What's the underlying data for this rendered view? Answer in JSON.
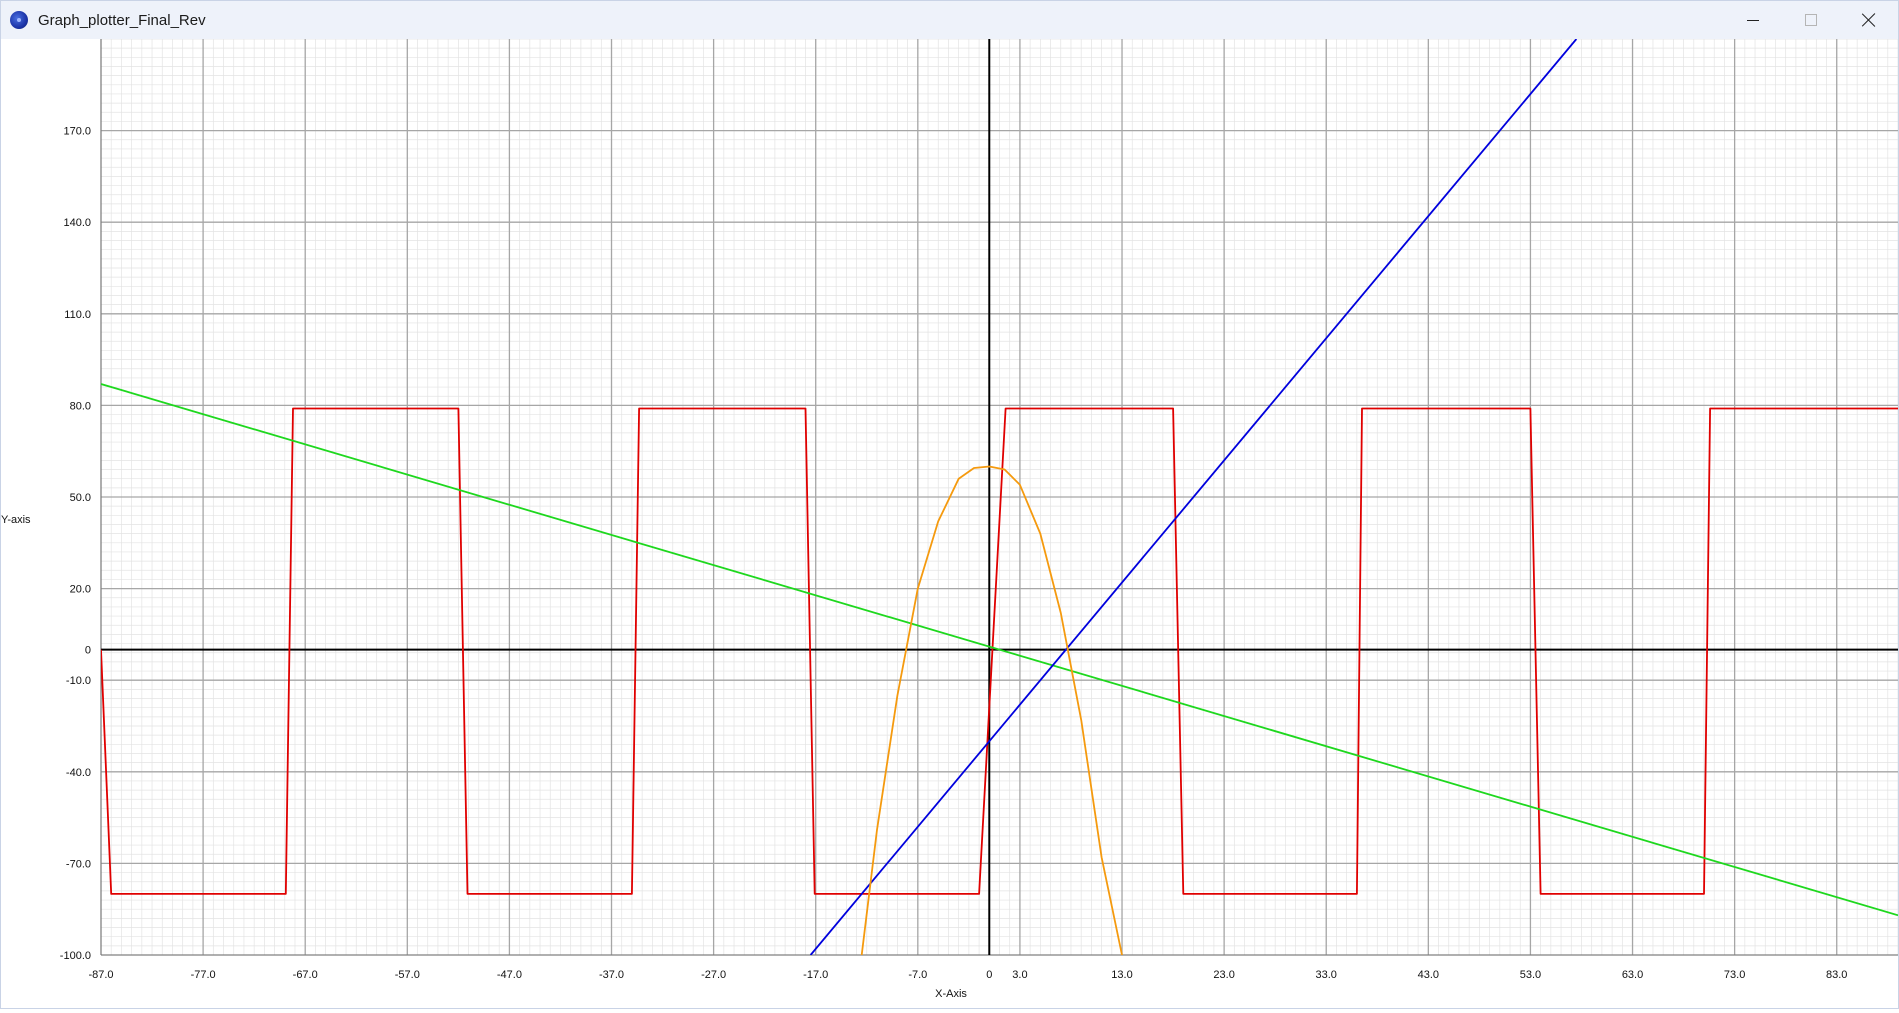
{
  "window": {
    "title": "Graph_plotter_Final_Rev",
    "icon": "app-globe-icon",
    "controls": [
      "minimize-icon",
      "maximize-icon",
      "close-icon"
    ]
  },
  "chart_data": {
    "type": "line",
    "xlabel": "X-Axis",
    "ylabel": "Y-axis",
    "xlim": [
      -87,
      89
    ],
    "ylim": [
      -100,
      200
    ],
    "x_ticks": [
      -87,
      -77,
      -67,
      -57,
      -47,
      -37,
      -27,
      -17,
      -7,
      0,
      3,
      13,
      23,
      33,
      43,
      53,
      63,
      73,
      83
    ],
    "x_tick_labels": [
      "-87.0",
      "-77.0",
      "-67.0",
      "-57.0",
      "-47.0",
      "-37.0",
      "-27.0",
      "-17.0",
      "-7.0",
      "0",
      "3.0",
      "13.0",
      "23.0",
      "33.0",
      "43.0",
      "53.0",
      "63.0",
      "73.0",
      "83.0"
    ],
    "y_ticks": [
      170,
      140,
      110,
      80,
      50,
      20,
      0,
      -10,
      -40,
      -70,
      -100
    ],
    "y_tick_labels": [
      "170.0",
      "140.0",
      "110.0",
      "80.0",
      "50.0",
      "20.0",
      "0",
      "-10.0",
      "-40.0",
      "-70.0",
      "-100.0"
    ],
    "grid": true,
    "minor_grid": true,
    "series": [
      {
        "color": "#e00000",
        "x": [
          -87,
          -86,
          -68.9,
          -68.2,
          -52,
          -51.1,
          -35,
          -34.3,
          -18,
          -17.1,
          -1,
          1.6,
          18,
          19,
          36,
          36.5,
          53,
          54,
          70,
          70.6,
          89
        ],
        "y": [
          0,
          -80,
          -80,
          79,
          79,
          -80,
          -80,
          79,
          79,
          -80,
          -80,
          79,
          79,
          -80,
          -80,
          79,
          79,
          -80,
          -80,
          79,
          79
        ]
      },
      {
        "color": "#1ed81e",
        "x": [
          -87,
          89
        ],
        "y": [
          87,
          -87
        ]
      },
      {
        "color": "#0000dd",
        "x": [
          -17.5,
          57.5
        ],
        "y": [
          -100,
          200
        ]
      },
      {
        "color": "#f59a0e",
        "x": [
          -12.5,
          -11,
          -9,
          -7,
          -5,
          -3,
          -1.5,
          0,
          1.5,
          3,
          5,
          7,
          9,
          11,
          13
        ],
        "y": [
          -100,
          -59,
          -15,
          20,
          42,
          56,
          59.5,
          60,
          59,
          54,
          38,
          12,
          -23,
          -68,
          -100
        ]
      }
    ]
  }
}
